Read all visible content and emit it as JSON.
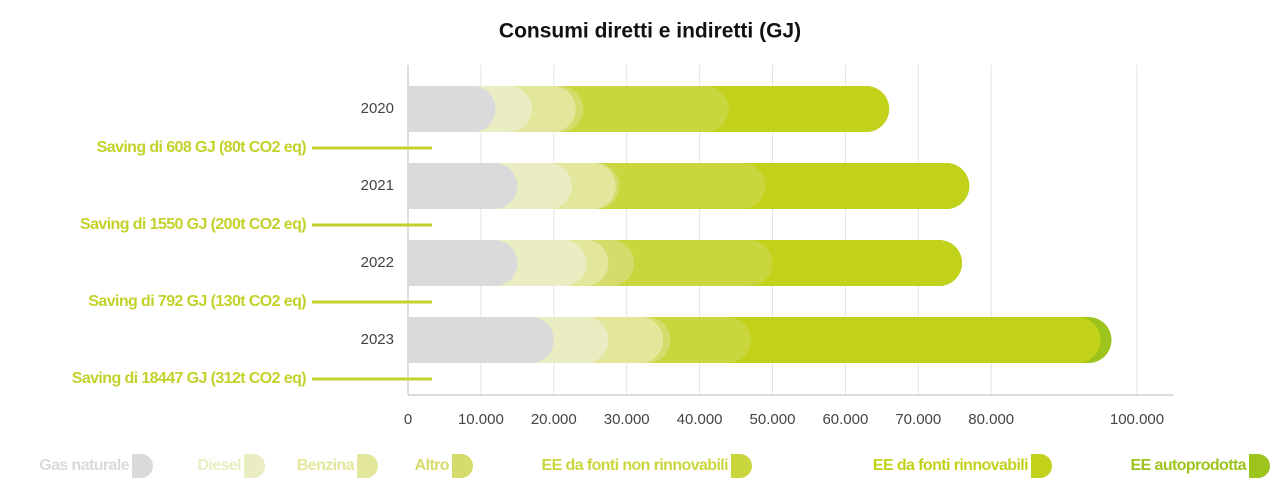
{
  "chart_data": {
    "type": "bar",
    "orientation": "horizontal",
    "stacked": true,
    "title": "Consumi diretti e indiretti (GJ)",
    "categories": [
      "2020",
      "2021",
      "2022",
      "2023"
    ],
    "series": [
      {
        "name": "Gas naturale",
        "color": "#d9dadb",
        "values": [
          12000,
          15000,
          15000,
          20000
        ]
      },
      {
        "name": "Diesel",
        "color": "#eaecc2",
        "values": [
          5000,
          7500,
          9500,
          7500
        ]
      },
      {
        "name": "Benzina",
        "color": "#e3e79c",
        "values": [
          6000,
          6000,
          3000,
          7500
        ]
      },
      {
        "name": "Altro",
        "color": "#d5dc6c",
        "values": [
          1000,
          500,
          3500,
          1000
        ]
      },
      {
        "name": "EE da fonti non rinnovabili",
        "color": "#cad63e",
        "values": [
          20000,
          20000,
          19000,
          11000
        ]
      },
      {
        "name": "EE da fonti rinnovabili",
        "color": "#c2d11a",
        "values": [
          22000,
          28000,
          26000,
          48000
        ]
      },
      {
        "name": "EE autoprodotta",
        "color": "#9cc41c",
        "values": [
          0,
          0,
          0,
          1500
        ]
      }
    ],
    "annotations": [
      "Saving di 608 GJ (80t CO2 eq)",
      "Saving di 1550 GJ (200t CO2 eq)",
      "Saving di 792 GJ (130t CO2 eq)",
      "Saving di 18447 GJ (312t CO2 eq)"
    ],
    "xlim": [
      0,
      105000
    ],
    "xticks": [
      0,
      {
        "value": 10000,
        "label": "10.000"
      },
      {
        "value": 20000,
        "label": "20.000"
      },
      {
        "value": 30000,
        "label": "30.000"
      },
      {
        "value": 40000,
        "label": "40.000"
      },
      {
        "value": 50000,
        "label": "50.000"
      },
      {
        "value": 60000,
        "label": "60.000"
      },
      {
        "value": 70000,
        "label": "70.000"
      },
      {
        "value": 80000,
        "label": "80.000"
      },
      {
        "value": 100000,
        "label": "100.000"
      }
    ],
    "grid": true
  }
}
